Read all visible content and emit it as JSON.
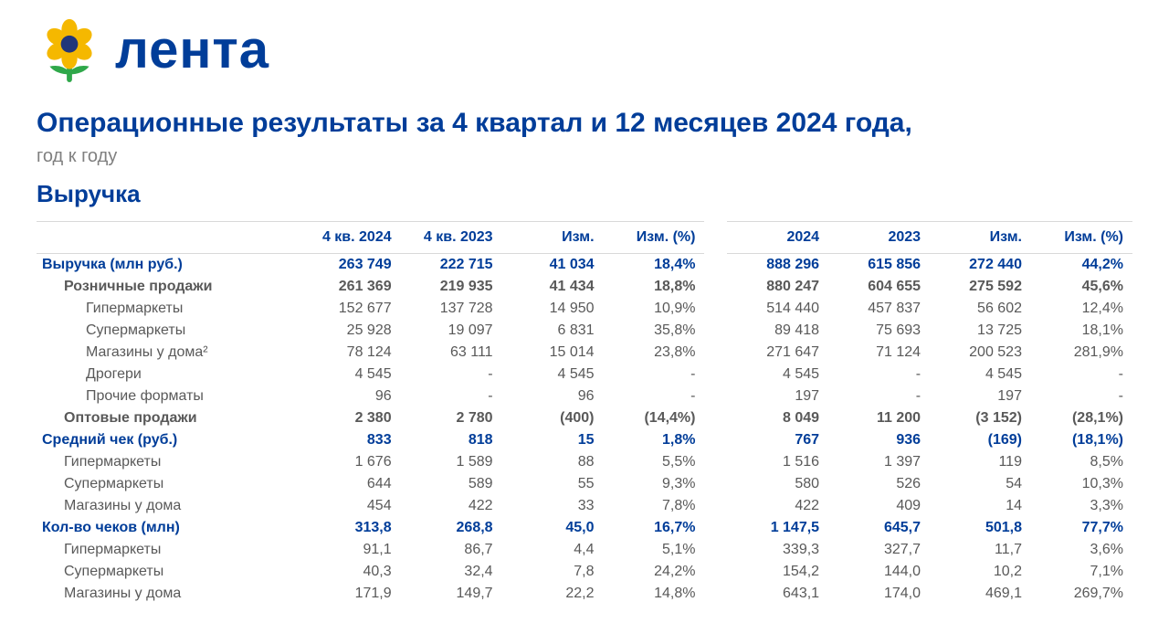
{
  "colors": {
    "brand_blue": "#003d99",
    "text_gray": "#595959",
    "header_gray": "#808080",
    "border": "#d9d9d9",
    "petal_yellow": "#f5b800",
    "petal_center": "#21367a",
    "leaf_green": "#2fa84a",
    "stem_green": "#2fa84a"
  },
  "logo_text": "лента",
  "title": "Операционные результаты за 4 квартал и 12 месяцев 2024 года,",
  "subtitle": "год к году",
  "section": "Выручка",
  "table": {
    "columns": [
      "",
      "4 кв. 2024",
      "4 кв. 2023",
      "Изм.",
      "Изм. (%)",
      "2024",
      "2023",
      "Изм.",
      "Изм. (%)"
    ],
    "rows": [
      {
        "label": "Выручка (млн руб.)",
        "indent": 0,
        "bold": true,
        "blue": true,
        "v": [
          "263 749",
          "222 715",
          "41 034",
          "18,4%",
          "888 296",
          "615 856",
          "272 440",
          "44,2%"
        ]
      },
      {
        "label": "Розничные продажи",
        "indent": 1,
        "bold": true,
        "blue": false,
        "v": [
          "261 369",
          "219 935",
          "41 434",
          "18,8%",
          "880 247",
          "604 655",
          "275 592",
          "45,6%"
        ]
      },
      {
        "label": "Гипермаркеты",
        "indent": 2,
        "bold": false,
        "blue": false,
        "v": [
          "152 677",
          "137 728",
          "14 950",
          "10,9%",
          "514 440",
          "457 837",
          "56 602",
          "12,4%"
        ]
      },
      {
        "label": "Супермаркеты",
        "indent": 2,
        "bold": false,
        "blue": false,
        "v": [
          "25 928",
          "19 097",
          "6 831",
          "35,8%",
          "89 418",
          "75 693",
          "13 725",
          "18,1%"
        ]
      },
      {
        "label": "Магазины у дома²",
        "indent": 2,
        "bold": false,
        "blue": false,
        "v": [
          "78 124",
          "63 111",
          "15 014",
          "23,8%",
          "271 647",
          "71 124",
          "200 523",
          "281,9%"
        ]
      },
      {
        "label": "Дрогери",
        "indent": 2,
        "bold": false,
        "blue": false,
        "v": [
          "4 545",
          "-",
          "4 545",
          "-",
          "4 545",
          "-",
          "4 545",
          "-"
        ]
      },
      {
        "label": "Прочие форматы",
        "indent": 2,
        "bold": false,
        "blue": false,
        "v": [
          "96",
          "-",
          "96",
          "-",
          "197",
          "-",
          "197",
          "-"
        ]
      },
      {
        "label": "Оптовые продажи",
        "indent": 1,
        "bold": true,
        "blue": false,
        "v": [
          "2 380",
          "2 780",
          "(400)",
          "(14,4%)",
          "8 049",
          "11 200",
          "(3 152)",
          "(28,1%)"
        ]
      },
      {
        "label": "Средний чек (руб.)",
        "indent": 0,
        "bold": true,
        "blue": true,
        "v": [
          "833",
          "818",
          "15",
          "1,8%",
          "767",
          "936",
          "(169)",
          "(18,1%)"
        ]
      },
      {
        "label": "Гипермаркеты",
        "indent": 1,
        "bold": false,
        "blue": false,
        "v": [
          "1 676",
          "1 589",
          "88",
          "5,5%",
          "1 516",
          "1 397",
          "119",
          "8,5%"
        ]
      },
      {
        "label": "Супермаркеты",
        "indent": 1,
        "bold": false,
        "blue": false,
        "v": [
          "644",
          "589",
          "55",
          "9,3%",
          "580",
          "526",
          "54",
          "10,3%"
        ]
      },
      {
        "label": "Магазины у дома",
        "indent": 1,
        "bold": false,
        "blue": false,
        "v": [
          "454",
          "422",
          "33",
          "7,8%",
          "422",
          "409",
          "14",
          "3,3%"
        ]
      },
      {
        "label": "Кол-во чеков (млн)",
        "indent": 0,
        "bold": true,
        "blue": true,
        "v": [
          "313,8",
          "268,8",
          "45,0",
          "16,7%",
          "1 147,5",
          "645,7",
          "501,8",
          "77,7%"
        ]
      },
      {
        "label": "Гипермаркеты",
        "indent": 1,
        "bold": false,
        "blue": false,
        "v": [
          "91,1",
          "86,7",
          "4,4",
          "5,1%",
          "339,3",
          "327,7",
          "11,7",
          "3,6%"
        ]
      },
      {
        "label": "Супермаркеты",
        "indent": 1,
        "bold": false,
        "blue": false,
        "v": [
          "40,3",
          "32,4",
          "7,8",
          "24,2%",
          "154,2",
          "144,0",
          "10,2",
          "7,1%"
        ]
      },
      {
        "label": "Магазины у дома",
        "indent": 1,
        "bold": false,
        "blue": false,
        "v": [
          "171,9",
          "149,7",
          "22,2",
          "14,8%",
          "643,1",
          "174,0",
          "469,1",
          "269,7%"
        ]
      }
    ],
    "label_col_width": 280,
    "num_col_width": 108
  }
}
